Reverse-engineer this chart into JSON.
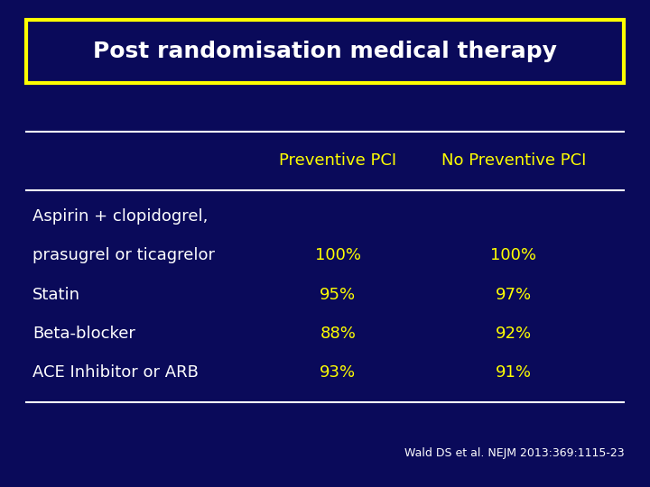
{
  "title": "Post randomisation medical therapy",
  "bg_color": "#0A0A5A",
  "title_color": "#FFFFFF",
  "title_box_color": "#FFFF00",
  "header_color": "#FFFF00",
  "text_color": "#FFFFFF",
  "value_color": "#FFFF00",
  "citation_color": "#FFFFFF",
  "col_headers": [
    "Preventive PCI",
    "No Preventive PCI"
  ],
  "row_labels_line1": [
    "Aspirin + clopidogrel,",
    "prasugrel or ticagrelor",
    "Statin",
    "Beta-blocker",
    "ACE Inhibitor or ARB"
  ],
  "col1_values": [
    "",
    "100%",
    "95%",
    "88%",
    "93%"
  ],
  "col2_values": [
    "",
    "100%",
    "97%",
    "92%",
    "91%"
  ],
  "citation": "Wald DS et al. NEJM 2013:369:1115-23",
  "title_fontsize": 18,
  "header_fontsize": 13,
  "row_fontsize": 13
}
